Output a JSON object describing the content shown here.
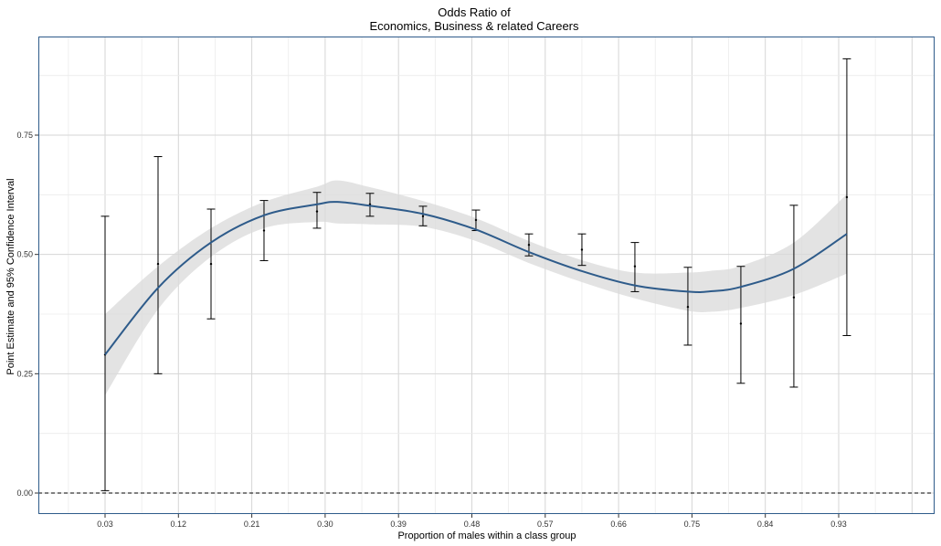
{
  "chart_data": {
    "type": "line",
    "title": "Odds Ratio of",
    "subtitle": "Economics, Business & related Careers",
    "xlabel": "Proportion of males within a class group",
    "ylabel": "Point Estimate and 95% Confidence Interval",
    "xlim": [
      0.03,
      0.93
    ],
    "ylim": [
      0.0,
      0.75
    ],
    "xticks": [
      "0.03",
      "0.12",
      "0.21",
      "0.30",
      "0.39",
      "0.48",
      "0.57",
      "0.66",
      "0.75",
      "0.84",
      "0.93"
    ],
    "yticks": [
      "0.00",
      "0.25",
      "0.50",
      "0.75"
    ],
    "grid": true,
    "reference_line": {
      "y": 0.0,
      "style": "dashed"
    },
    "series": [
      {
        "kind": "point_estimate_with_ci",
        "color": "#000000",
        "points": [
          {
            "x": 0.03,
            "y": 0.29,
            "lower": 0.005,
            "upper": 0.58
          },
          {
            "x": 0.095,
            "y": 0.48,
            "lower": 0.25,
            "upper": 0.705
          },
          {
            "x": 0.16,
            "y": 0.48,
            "lower": 0.365,
            "upper": 0.595
          },
          {
            "x": 0.225,
            "y": 0.55,
            "lower": 0.487,
            "upper": 0.613
          },
          {
            "x": 0.29,
            "y": 0.59,
            "lower": 0.555,
            "upper": 0.63
          },
          {
            "x": 0.355,
            "y": 0.605,
            "lower": 0.58,
            "upper": 0.628
          },
          {
            "x": 0.42,
            "y": 0.58,
            "lower": 0.56,
            "upper": 0.601
          },
          {
            "x": 0.485,
            "y": 0.572,
            "lower": 0.55,
            "upper": 0.593
          },
          {
            "x": 0.55,
            "y": 0.52,
            "lower": 0.497,
            "upper": 0.543
          },
          {
            "x": 0.615,
            "y": 0.51,
            "lower": 0.477,
            "upper": 0.543
          },
          {
            "x": 0.68,
            "y": 0.475,
            "lower": 0.422,
            "upper": 0.525
          },
          {
            "x": 0.745,
            "y": 0.39,
            "lower": 0.31,
            "upper": 0.473
          },
          {
            "x": 0.81,
            "y": 0.355,
            "lower": 0.23,
            "upper": 0.475
          },
          {
            "x": 0.875,
            "y": 0.41,
            "lower": 0.222,
            "upper": 0.603
          },
          {
            "x": 0.94,
            "y": 0.62,
            "lower": 0.33,
            "upper": 0.91
          }
        ]
      },
      {
        "kind": "smooth_fit",
        "color": "#2e5b8a",
        "band_color": "#d9d9d9",
        "points": [
          {
            "x": 0.03,
            "y": 0.29,
            "lower": 0.205,
            "upper": 0.375
          },
          {
            "x": 0.095,
            "y": 0.43,
            "lower": 0.385,
            "upper": 0.475
          },
          {
            "x": 0.16,
            "y": 0.525,
            "lower": 0.495,
            "upper": 0.555
          },
          {
            "x": 0.225,
            "y": 0.582,
            "lower": 0.555,
            "upper": 0.61
          },
          {
            "x": 0.29,
            "y": 0.605,
            "lower": 0.568,
            "upper": 0.642
          },
          {
            "x": 0.315,
            "y": 0.61,
            "lower": 0.565,
            "upper": 0.655
          },
          {
            "x": 0.355,
            "y": 0.602,
            "lower": 0.563,
            "upper": 0.641
          },
          {
            "x": 0.42,
            "y": 0.585,
            "lower": 0.558,
            "upper": 0.612
          },
          {
            "x": 0.485,
            "y": 0.552,
            "lower": 0.528,
            "upper": 0.576
          },
          {
            "x": 0.55,
            "y": 0.505,
            "lower": 0.482,
            "upper": 0.528
          },
          {
            "x": 0.615,
            "y": 0.465,
            "lower": 0.442,
            "upper": 0.488
          },
          {
            "x": 0.68,
            "y": 0.435,
            "lower": 0.408,
            "upper": 0.462
          },
          {
            "x": 0.745,
            "y": 0.422,
            "lower": 0.382,
            "upper": 0.462
          },
          {
            "x": 0.775,
            "y": 0.423,
            "lower": 0.38,
            "upper": 0.466
          },
          {
            "x": 0.81,
            "y": 0.432,
            "lower": 0.388,
            "upper": 0.476
          },
          {
            "x": 0.875,
            "y": 0.47,
            "lower": 0.415,
            "upper": 0.525
          },
          {
            "x": 0.94,
            "y": 0.543,
            "lower": 0.46,
            "upper": 0.626
          }
        ]
      }
    ]
  }
}
